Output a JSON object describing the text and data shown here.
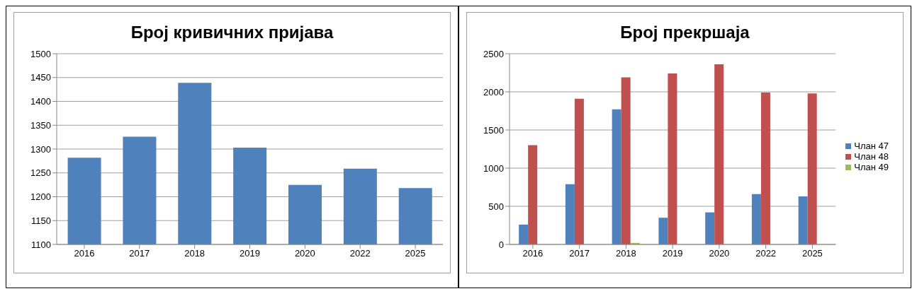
{
  "chart_data": [
    {
      "type": "bar",
      "title": "Број кривичних пријава",
      "categories": [
        "2016",
        "2017",
        "2018",
        "2019",
        "2020",
        "2022",
        "2025"
      ],
      "values": [
        1282,
        1326,
        1439,
        1303,
        1225,
        1259,
        1218
      ],
      "color": "#4f81bd",
      "ylim": [
        1100,
        1500
      ],
      "yticks": [
        1100,
        1150,
        1200,
        1250,
        1300,
        1350,
        1400,
        1450,
        1500
      ],
      "grid": "y",
      "legend": false
    },
    {
      "type": "bar",
      "title": "Број прекршаја",
      "categories": [
        "2016",
        "2017",
        "2018",
        "2019",
        "2020",
        "2022",
        "2025"
      ],
      "series": [
        {
          "name": "Члан 47",
          "color": "#4f81bd",
          "values": [
            260,
            790,
            1770,
            350,
            420,
            660,
            630
          ]
        },
        {
          "name": "Члан 48",
          "color": "#c0504d",
          "values": [
            1300,
            1910,
            2190,
            2240,
            2360,
            1990,
            1980
          ]
        },
        {
          "name": "Члан 49",
          "color": "#9bbb59",
          "values": [
            null,
            null,
            20,
            null,
            null,
            null,
            null
          ]
        }
      ],
      "ylim": [
        0,
        2500
      ],
      "yticks": [
        0,
        500,
        1000,
        1500,
        2000,
        2500
      ],
      "grid": "y",
      "legend": "right"
    }
  ]
}
